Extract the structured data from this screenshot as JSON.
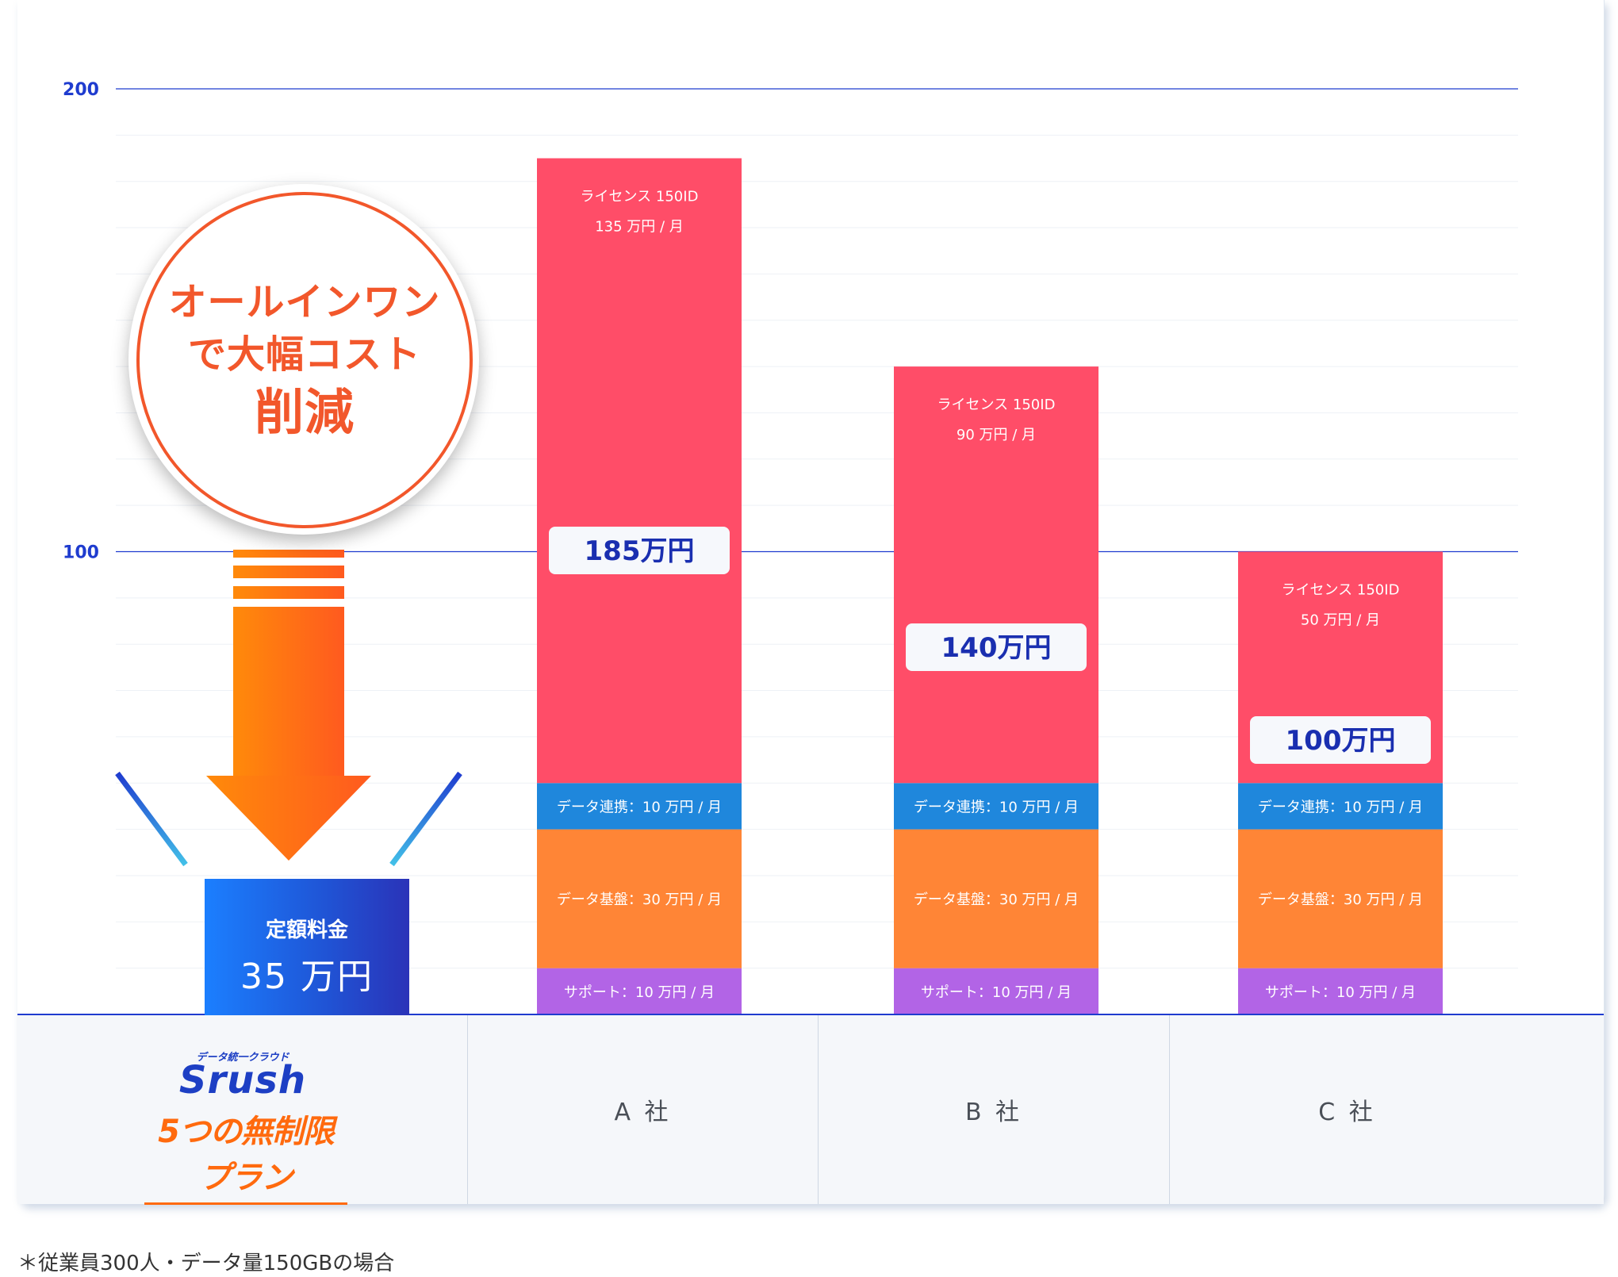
{
  "chart_data": {
    "type": "bar",
    "stacked": true,
    "categories": [
      "A 社",
      "B 社",
      "C 社"
    ],
    "yticks": [
      100,
      200
    ],
    "ylim": [
      0,
      200
    ],
    "series": [
      {
        "name": "サポート",
        "color": "#b264e6",
        "values": [
          10,
          10,
          10
        ],
        "labels": [
          "サポート：10 万円 / 月",
          "サポート：10 万円 / 月",
          "サポート：10 万円 / 月"
        ]
      },
      {
        "name": "データ基盤",
        "color": "#ff8536",
        "values": [
          30,
          30,
          30
        ],
        "labels": [
          "データ基盤：30 万円 / 月",
          "データ基盤：30 万円 / 月",
          "データ基盤：30 万円 / 月"
        ]
      },
      {
        "name": "データ連携",
        "color": "#1f87dc",
        "values": [
          10,
          10,
          10
        ],
        "labels": [
          "データ連携：10 万円 / 月",
          "データ連携：10 万円 / 月",
          "データ連携：10 万円 / 月"
        ]
      },
      {
        "name": "ライセンス",
        "color": "#ff4d68",
        "values": [
          135,
          90,
          50
        ],
        "labels_line1": [
          "ライセンス 150ID",
          "ライセンス 150ID",
          "ライセンス 150ID"
        ],
        "labels_line2": [
          "135 万円 / 月",
          "90 万円 / 月",
          "50 万円 / 月"
        ]
      }
    ],
    "totals": [
      "185万円",
      "140万円",
      "100万円"
    ],
    "srush": {
      "value": 35,
      "line1": "定額料金",
      "line2": "35 万円"
    }
  },
  "badge": {
    "line1": "オールインワン",
    "line2": "で大幅コスト",
    "line3": "削減"
  },
  "logo": {
    "sub": "データ統一クラウド",
    "name": "Srush",
    "plan": "5つの無制限プラン"
  },
  "companies": [
    "A 社",
    "B 社",
    "C 社"
  ],
  "footnote": "＊従業員300人・データ量150GBの場合",
  "colors": {
    "axis": "#1f3ccf",
    "grid": "#eef1f6",
    "total_text": "#1a2fb0",
    "brand_orange": "#f2572b"
  }
}
